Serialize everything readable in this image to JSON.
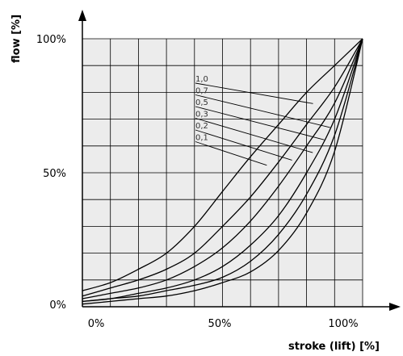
{
  "chart_data": {
    "type": "line",
    "xlabel": "stroke (lift) [%]",
    "ylabel": "flow [%]",
    "xlim": [
      0,
      100
    ],
    "ylim": [
      0,
      100
    ],
    "x_ticks": [
      "0%",
      "50%",
      "100%"
    ],
    "y_ticks": [
      "0%",
      "50%",
      "100%"
    ],
    "grid": true,
    "colors": {
      "plot_background": "#ececec",
      "grid": "#000000",
      "line": "#000000",
      "axis": "#000000"
    },
    "series": [
      {
        "name": "1,0",
        "x": [
          0,
          10,
          20,
          30,
          40,
          50,
          60,
          70,
          80,
          90,
          100
        ],
        "y": [
          6,
          9,
          14,
          20,
          30,
          43,
          56,
          68,
          80,
          90,
          100
        ]
      },
      {
        "name": "0,7",
        "x": [
          0,
          10,
          20,
          30,
          40,
          50,
          60,
          70,
          80,
          90,
          100
        ],
        "y": [
          4,
          7,
          10,
          14,
          20,
          30,
          41,
          54,
          68,
          82,
          100
        ]
      },
      {
        "name": "0,5",
        "x": [
          0,
          10,
          20,
          30,
          40,
          50,
          60,
          70,
          80,
          90,
          100
        ],
        "y": [
          3,
          5,
          7,
          10,
          15,
          22,
          32,
          45,
          60,
          76,
          100
        ]
      },
      {
        "name": "0,3",
        "x": [
          0,
          10,
          20,
          30,
          40,
          50,
          60,
          70,
          80,
          90,
          100
        ],
        "y": [
          2,
          3,
          5,
          7,
          10,
          15,
          23,
          34,
          50,
          70,
          100
        ]
      },
      {
        "name": "0,2",
        "x": [
          0,
          10,
          20,
          30,
          40,
          50,
          60,
          70,
          80,
          90,
          100
        ],
        "y": [
          2,
          3,
          4,
          6,
          8,
          11,
          17,
          27,
          42,
          64,
          100
        ]
      },
      {
        "name": "0,1",
        "x": [
          0,
          10,
          20,
          30,
          40,
          50,
          60,
          70,
          80,
          90,
          100
        ],
        "y": [
          1,
          2,
          3,
          4,
          6,
          9,
          13,
          21,
          35,
          58,
          100
        ]
      }
    ],
    "labels": [
      {
        "text": "1,0",
        "target": [
          82.3,
          75.8
        ]
      },
      {
        "text": "0,7",
        "target": [
          88.4,
          66.9
        ]
      },
      {
        "text": "0,5",
        "target": [
          86.3,
          62.3
        ]
      },
      {
        "text": "0,3",
        "target": [
          82.2,
          57.5
        ]
      },
      {
        "text": "0,2",
        "target": [
          74.8,
          54.7
        ]
      },
      {
        "text": "0,1",
        "target": [
          65.8,
          52.8
        ]
      }
    ]
  }
}
